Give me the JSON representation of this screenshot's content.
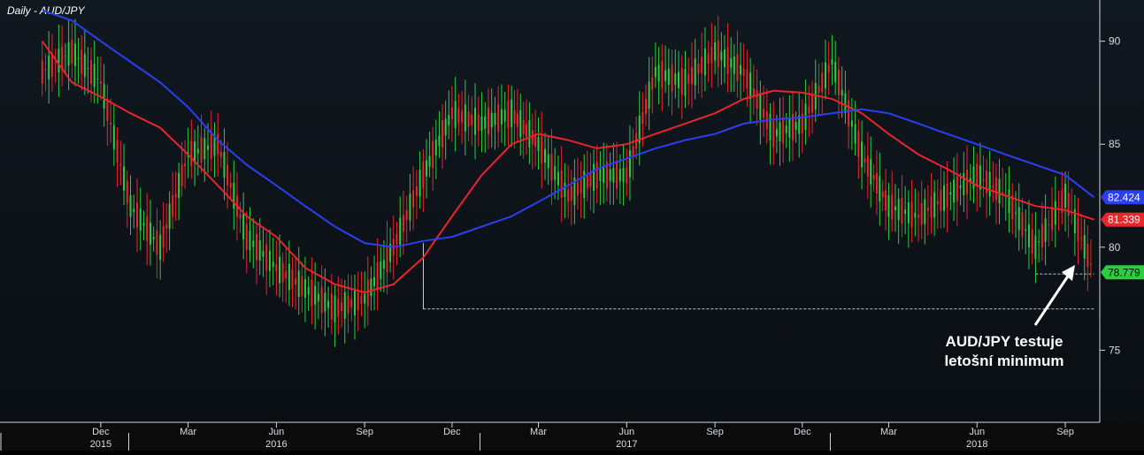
{
  "chart_data": {
    "type": "line",
    "title": "Daily - AUD/JPY",
    "x_ticks": [
      {
        "label": "Dec",
        "year_label": "2015"
      },
      {
        "label": "Mar"
      },
      {
        "label": "Jun",
        "year_label": "2016"
      },
      {
        "label": "Sep"
      },
      {
        "label": "Dec"
      },
      {
        "label": "Mar"
      },
      {
        "label": "Jun",
        "year_label": "2017"
      },
      {
        "label": "Sep"
      },
      {
        "label": "Dec"
      },
      {
        "label": "Mar"
      },
      {
        "label": "Jun",
        "year_label": "2018"
      },
      {
        "label": "Sep"
      }
    ],
    "ylim": [
      71.5,
      92
    ],
    "y_ticks": [
      75,
      80,
      85,
      90
    ],
    "grid": false,
    "series": [
      {
        "kind": "price",
        "color_up": "#2ecc40",
        "color_down": "#e8262b",
        "x": [
          "2015-10",
          "2015-11",
          "2015-12",
          "2016-01",
          "2016-02",
          "2016-03",
          "2016-04",
          "2016-05",
          "2016-06",
          "2016-07",
          "2016-08",
          "2016-09",
          "2016-10",
          "2016-11",
          "2016-12",
          "2017-01",
          "2017-02",
          "2017-03",
          "2017-04",
          "2017-05",
          "2017-06",
          "2017-07",
          "2017-08",
          "2017-09",
          "2017-10",
          "2017-11",
          "2017-12",
          "2018-01",
          "2018-02",
          "2018-03",
          "2018-04",
          "2018-05",
          "2018-06",
          "2018-07",
          "2018-08",
          "2018-09",
          "2018-10"
        ],
        "values": [
          88.5,
          89.5,
          88.0,
          82.0,
          80.0,
          84.5,
          85.0,
          80.5,
          79.0,
          78.0,
          77.0,
          77.5,
          80.0,
          83.5,
          86.5,
          86.0,
          86.5,
          85.0,
          82.5,
          83.5,
          83.5,
          88.5,
          88.0,
          89.5,
          88.5,
          85.5,
          86.0,
          89.0,
          84.5,
          82.0,
          81.5,
          82.5,
          83.5,
          82.5,
          80.0,
          82.5,
          78.779
        ]
      },
      {
        "kind": "ma-fast",
        "color": "#e8262b",
        "x": [
          "2015-10",
          "2015-11",
          "2015-12",
          "2016-01",
          "2016-02",
          "2016-03",
          "2016-04",
          "2016-05",
          "2016-06",
          "2016-07",
          "2016-08",
          "2016-09",
          "2016-10",
          "2016-11",
          "2016-12",
          "2017-01",
          "2017-02",
          "2017-03",
          "2017-04",
          "2017-05",
          "2017-06",
          "2017-07",
          "2017-08",
          "2017-09",
          "2017-10",
          "2017-11",
          "2017-12",
          "2018-01",
          "2018-02",
          "2018-03",
          "2018-04",
          "2018-05",
          "2018-06",
          "2018-07",
          "2018-08",
          "2018-09",
          "2018-10"
        ],
        "values": [
          90.0,
          88.0,
          87.3,
          86.5,
          85.8,
          84.5,
          83.0,
          81.5,
          80.5,
          79.0,
          78.2,
          77.8,
          78.2,
          79.5,
          81.5,
          83.5,
          85.0,
          85.5,
          85.2,
          84.8,
          85.0,
          85.5,
          86.0,
          86.5,
          87.2,
          87.6,
          87.5,
          87.2,
          86.5,
          85.5,
          84.5,
          83.8,
          83.0,
          82.5,
          82.0,
          81.8,
          81.339
        ]
      },
      {
        "kind": "ma-slow",
        "color": "#2a3ff0",
        "x": [
          "2015-10",
          "2015-11",
          "2015-12",
          "2016-01",
          "2016-02",
          "2016-03",
          "2016-04",
          "2016-05",
          "2016-06",
          "2016-07",
          "2016-08",
          "2016-09",
          "2016-10",
          "2016-11",
          "2016-12",
          "2017-01",
          "2017-02",
          "2017-03",
          "2017-04",
          "2017-05",
          "2017-06",
          "2017-07",
          "2017-08",
          "2017-09",
          "2017-10",
          "2017-11",
          "2017-12",
          "2018-01",
          "2018-02",
          "2018-03",
          "2018-04",
          "2018-05",
          "2018-06",
          "2018-07",
          "2018-08",
          "2018-09",
          "2018-10"
        ],
        "values": [
          91.5,
          91.0,
          90.0,
          89.0,
          88.0,
          86.8,
          85.2,
          84.0,
          83.0,
          82.0,
          81.0,
          80.2,
          80.0,
          80.3,
          80.5,
          81.0,
          81.5,
          82.2,
          83.0,
          83.8,
          84.3,
          84.8,
          85.2,
          85.5,
          86.0,
          86.2,
          86.3,
          86.5,
          86.7,
          86.5,
          86.0,
          85.5,
          85.0,
          84.5,
          84.0,
          83.5,
          82.424
        ]
      }
    ],
    "value_labels": [
      {
        "text": "82.424",
        "value": 82.424,
        "color": "#2a3ff0"
      },
      {
        "text": "81.339",
        "value": 81.339,
        "color": "#e8262b"
      },
      {
        "text": "78.779",
        "value": 78.779,
        "color": "#2ecc40"
      }
    ],
    "support_lines": [
      {
        "from": "2016-11",
        "to": "2018-10",
        "value": 77.0
      },
      {
        "from": "2018-08",
        "to": "2018-10",
        "value": 78.7
      }
    ],
    "annotation": {
      "lines": [
        "AUD/JPY testuje",
        "letošní minimum"
      ],
      "color": "#ffffff"
    }
  }
}
